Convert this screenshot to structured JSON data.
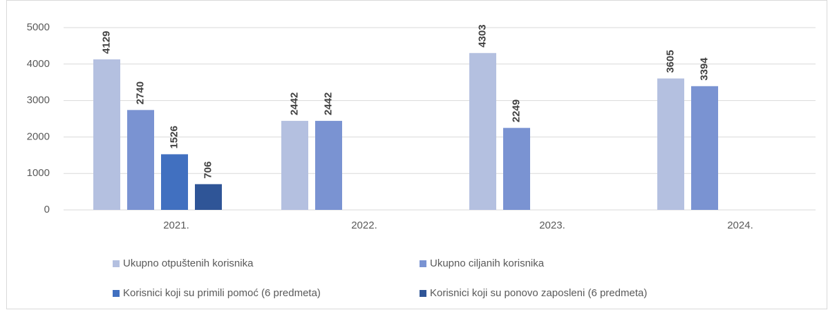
{
  "chart_data": {
    "type": "bar",
    "categories": [
      "2021.",
      "2022.",
      "2023.",
      "2024."
    ],
    "series": [
      {
        "name": "Ukupno otpuštenih korisnika",
        "color": "#b4c0e0",
        "values": [
          4129,
          2442,
          4303,
          3605
        ]
      },
      {
        "name": "Ukupno ciljanih korisnika",
        "color": "#7a93d2",
        "values": [
          2740,
          2442,
          2249,
          3394
        ]
      },
      {
        "name": "Korisnici koji su primili pomoć (6 predmeta)",
        "color": "#4170c0",
        "values": [
          1526,
          null,
          null,
          null
        ]
      },
      {
        "name": "Korisnici koji su ponovo zaposleni (6 predmeta)",
        "color": "#2f5597",
        "values": [
          706,
          null,
          null,
          null
        ]
      }
    ],
    "ylim": [
      0,
      5000
    ],
    "yticks": [
      0,
      1000,
      2000,
      3000,
      4000,
      5000
    ],
    "grid": true,
    "legend": "bottom"
  }
}
